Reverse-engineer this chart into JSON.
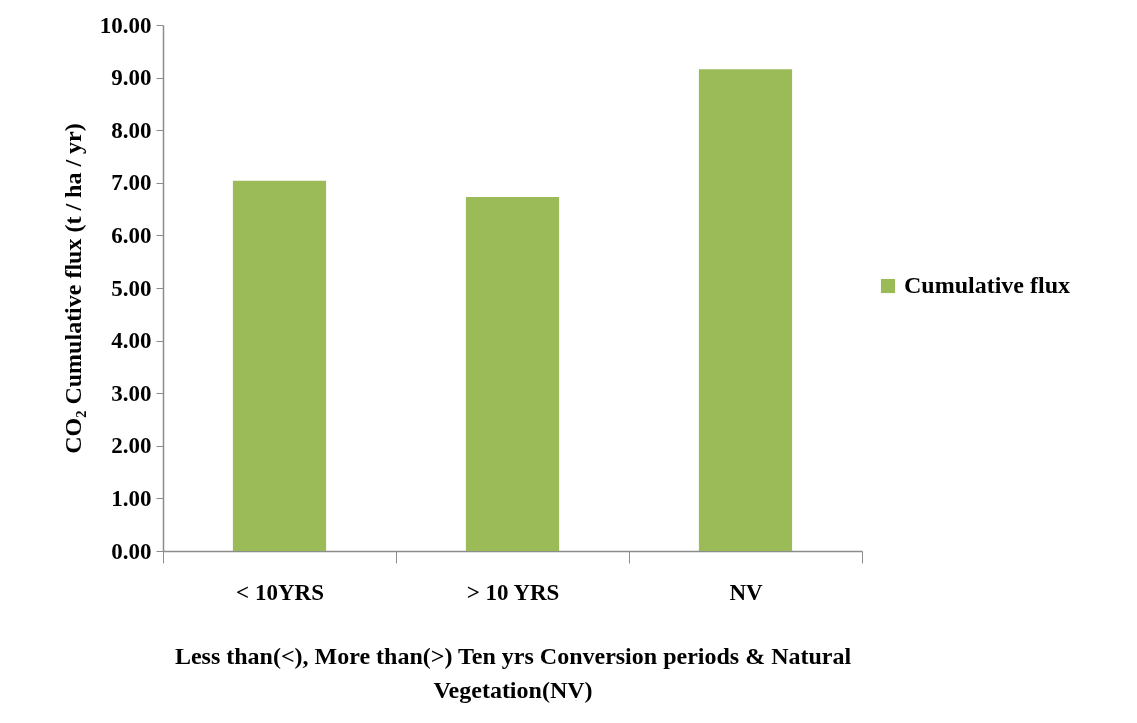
{
  "chart_data": {
    "type": "bar",
    "ylabel": "CO₂ Cumulative flux (t / ha / yr)",
    "xlabel": "Less than(<),  More than(>) Ten yrs Conversion periods & Natural Vegetation(NV)",
    "categories": [
      "< 10YRS",
      "> 10 YRS",
      "NV"
    ],
    "series": [
      {
        "name": "Cumulative flux",
        "color": "#9bbb59",
        "values": [
          7.04,
          6.73,
          9.16
        ]
      }
    ],
    "ylim": [
      0,
      10
    ],
    "yticks": [
      {
        "value": 0,
        "label": "0.00"
      },
      {
        "value": 1,
        "label": "1.00"
      },
      {
        "value": 2,
        "label": "2.00"
      },
      {
        "value": 3,
        "label": "3.00"
      },
      {
        "value": 4,
        "label": "4.00"
      },
      {
        "value": 5,
        "label": "5.00"
      },
      {
        "value": 6,
        "label": "6.00"
      },
      {
        "value": 7,
        "label": "7.00"
      },
      {
        "value": 8,
        "label": "8.00"
      },
      {
        "value": 9,
        "label": "9.00"
      },
      {
        "value": 10,
        "label": "10.00"
      }
    ],
    "grid": false,
    "legend": "right"
  }
}
